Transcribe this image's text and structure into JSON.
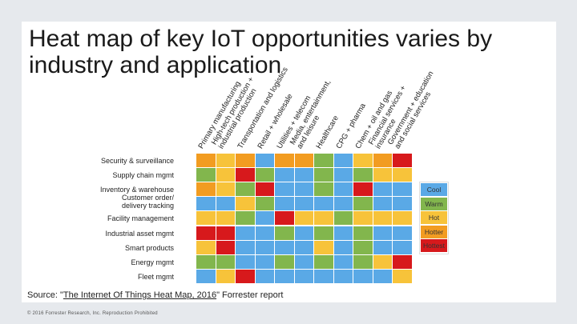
{
  "slide": {
    "title": "Heat map of key IoT opportunities varies by industry and application",
    "source_prefix": "Source: \"",
    "source_link": "The Internet Of Things Heat Map, 2016",
    "source_suffix": "\" Forrester report",
    "copyright": "© 2016 Forrester Research, Inc. Reproduction Prohibited"
  },
  "colors": {
    "cool": "#5aa9e6",
    "warm": "#82b64d",
    "hot": "#f7c33a",
    "hotter": "#f29c21",
    "hottest": "#d7191c"
  },
  "chart_data": {
    "type": "heatmap",
    "columns": [
      "Primary manufacturing",
      "High-tech production +\nindustrial production",
      "Transportation and logistics",
      "Retail + wholesale",
      "Utilities + telecom",
      "Media, entertainment,\nand leisure",
      "Healthcare",
      "CPG + pharma",
      "Chem + oil and gas",
      "Financial services +\ninsurance",
      "Government + education\nand social services"
    ],
    "rows": [
      "Security & surveillance",
      "Supply chain mgmt",
      "Inventory & warehouse",
      "Customer order/\ndelivery tracking",
      "Facility management",
      "Industrial asset mgmt",
      "Smart products",
      "Energy mgmt",
      "Fleet mgmt"
    ],
    "levels": [
      "cool",
      "warm",
      "hot",
      "hotter",
      "hottest"
    ],
    "values": [
      [
        "hotter",
        "hot",
        "hotter",
        "cool",
        "hotter",
        "hotter",
        "warm",
        "cool",
        "hot",
        "hotter",
        "hottest"
      ],
      [
        "warm",
        "hot",
        "hottest",
        "warm",
        "cool",
        "cool",
        "warm",
        "cool",
        "warm",
        "hot",
        "hot"
      ],
      [
        "hotter",
        "hot",
        "warm",
        "hottest",
        "cool",
        "cool",
        "warm",
        "cool",
        "hottest",
        "cool",
        "cool"
      ],
      [
        "cool",
        "cool",
        "hot",
        "warm",
        "cool",
        "cool",
        "cool",
        "cool",
        "warm",
        "cool",
        "cool"
      ],
      [
        "hot",
        "hot",
        "warm",
        "cool",
        "hottest",
        "hot",
        "hot",
        "warm",
        "hot",
        "hot",
        "hot"
      ],
      [
        "hottest",
        "hottest",
        "cool",
        "cool",
        "warm",
        "cool",
        "warm",
        "cool",
        "warm",
        "cool",
        "cool"
      ],
      [
        "hot",
        "hottest",
        "cool",
        "cool",
        "cool",
        "cool",
        "hot",
        "cool",
        "warm",
        "cool",
        "cool"
      ],
      [
        "warm",
        "warm",
        "cool",
        "cool",
        "warm",
        "cool",
        "warm",
        "cool",
        "warm",
        "hot",
        "hottest"
      ],
      [
        "cool",
        "hot",
        "hottest",
        "cool",
        "cool",
        "cool",
        "cool",
        "cool",
        "cool",
        "cool",
        "hot"
      ]
    ],
    "legend": [
      {
        "level": "cool",
        "label": "Cool"
      },
      {
        "level": "warm",
        "label": "Warm"
      },
      {
        "level": "hot",
        "label": "Hot"
      },
      {
        "level": "hotter",
        "label": "Hotter"
      },
      {
        "level": "hottest",
        "label": "Hottest"
      }
    ]
  }
}
